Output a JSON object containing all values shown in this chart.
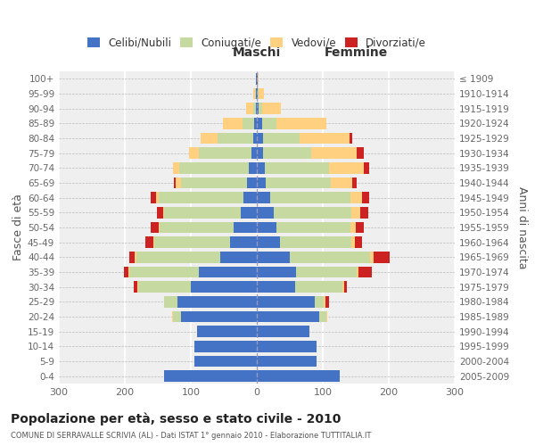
{
  "age_groups": [
    "0-4",
    "5-9",
    "10-14",
    "15-19",
    "20-24",
    "25-29",
    "30-34",
    "35-39",
    "40-44",
    "45-49",
    "50-54",
    "55-59",
    "60-64",
    "65-69",
    "70-74",
    "75-79",
    "80-84",
    "85-89",
    "90-94",
    "95-99",
    "100+"
  ],
  "birth_years": [
    "2005-2009",
    "2000-2004",
    "1995-1999",
    "1990-1994",
    "1985-1989",
    "1980-1984",
    "1975-1979",
    "1970-1974",
    "1965-1969",
    "1960-1964",
    "1955-1959",
    "1950-1954",
    "1945-1949",
    "1940-1944",
    "1935-1939",
    "1930-1934",
    "1925-1929",
    "1920-1924",
    "1915-1919",
    "1910-1914",
    "≤ 1909"
  ],
  "males": {
    "single": [
      140,
      95,
      95,
      90,
      115,
      120,
      100,
      88,
      55,
      40,
      35,
      25,
      20,
      15,
      12,
      8,
      5,
      4,
      2,
      1,
      1
    ],
    "married": [
      0,
      0,
      0,
      0,
      12,
      20,
      80,
      105,
      128,
      115,
      112,
      115,
      128,
      100,
      105,
      80,
      55,
      18,
      4,
      2,
      0
    ],
    "widowed": [
      0,
      0,
      0,
      0,
      1,
      1,
      1,
      1,
      2,
      2,
      2,
      2,
      5,
      8,
      10,
      15,
      25,
      30,
      10,
      3,
      0
    ],
    "divorced": [
      0,
      0,
      0,
      0,
      0,
      0,
      5,
      8,
      8,
      12,
      12,
      10,
      8,
      3,
      0,
      0,
      0,
      0,
      0,
      0,
      0
    ]
  },
  "females": {
    "single": [
      125,
      90,
      90,
      80,
      95,
      88,
      58,
      60,
      50,
      35,
      30,
      25,
      20,
      14,
      12,
      10,
      10,
      8,
      3,
      2,
      1
    ],
    "married": [
      0,
      0,
      0,
      0,
      10,
      14,
      72,
      92,
      122,
      108,
      112,
      118,
      122,
      98,
      98,
      72,
      55,
      22,
      5,
      1,
      0
    ],
    "widowed": [
      0,
      0,
      0,
      0,
      2,
      2,
      2,
      2,
      5,
      6,
      8,
      14,
      18,
      32,
      52,
      70,
      75,
      75,
      28,
      8,
      2
    ],
    "divorced": [
      0,
      0,
      0,
      0,
      0,
      5,
      5,
      20,
      25,
      10,
      12,
      12,
      10,
      8,
      8,
      10,
      5,
      0,
      0,
      0,
      0
    ]
  },
  "colors": {
    "single": "#4472c4",
    "married": "#c5d9a0",
    "widowed": "#ffd080",
    "divorced": "#cc2222"
  },
  "xlim": 300,
  "title": "Popolazione per età, sesso e stato civile - 2010",
  "subtitle": "COMUNE DI SERRAVALLE SCRIVIA (AL) - Dati ISTAT 1° gennaio 2010 - Elaborazione TUTTITALIA.IT",
  "ylabel_left": "Fasce di età",
  "ylabel_right": "Anni di nascita",
  "header_left": "Maschi",
  "header_right": "Femmine",
  "legend_labels": [
    "Celibi/Nubili",
    "Coniugati/e",
    "Vedovi/e",
    "Divorziati/e"
  ],
  "background_color": "#ffffff",
  "plot_bg": "#efefef",
  "bar_height": 0.75
}
